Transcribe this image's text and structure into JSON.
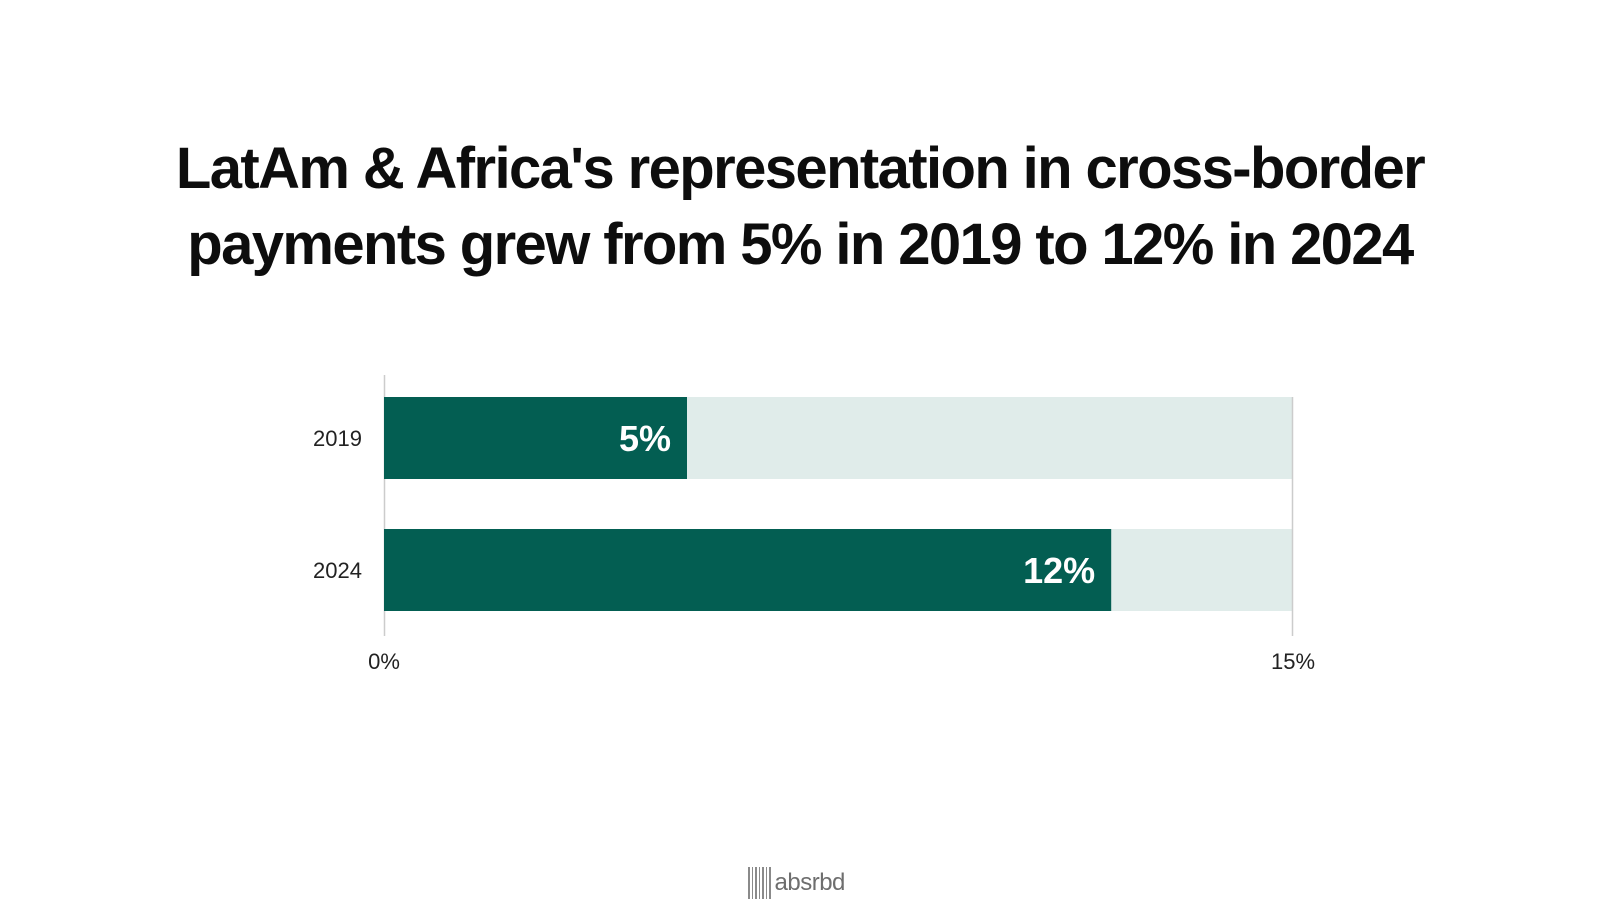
{
  "chart_data": {
    "type": "bar",
    "orientation": "horizontal",
    "title": "LatAm & Africa's representation in cross-border payments grew from 5% in 2019 to 12% in 2024",
    "title_lines": [
      "LatAm & Africa's representation in cross-border",
      "payments grew from 5% in 2019 to 12% in 2024"
    ],
    "categories": [
      "2019",
      "2024"
    ],
    "values": [
      5,
      12
    ],
    "data_labels": [
      "5%",
      "12%"
    ],
    "xlim": [
      0,
      15
    ],
    "x_ticks": [
      0,
      15
    ],
    "x_tick_labels": [
      "0%",
      "15%"
    ],
    "xlabel": "",
    "ylabel": "",
    "colors": {
      "bar": "#035e52",
      "track": "#e0ecea",
      "bar_label": "#ffffff",
      "axis": "#cccccc",
      "tick_text": "#222222"
    }
  },
  "brand": {
    "name": "absrbd",
    "icon": "barcode-icon"
  }
}
